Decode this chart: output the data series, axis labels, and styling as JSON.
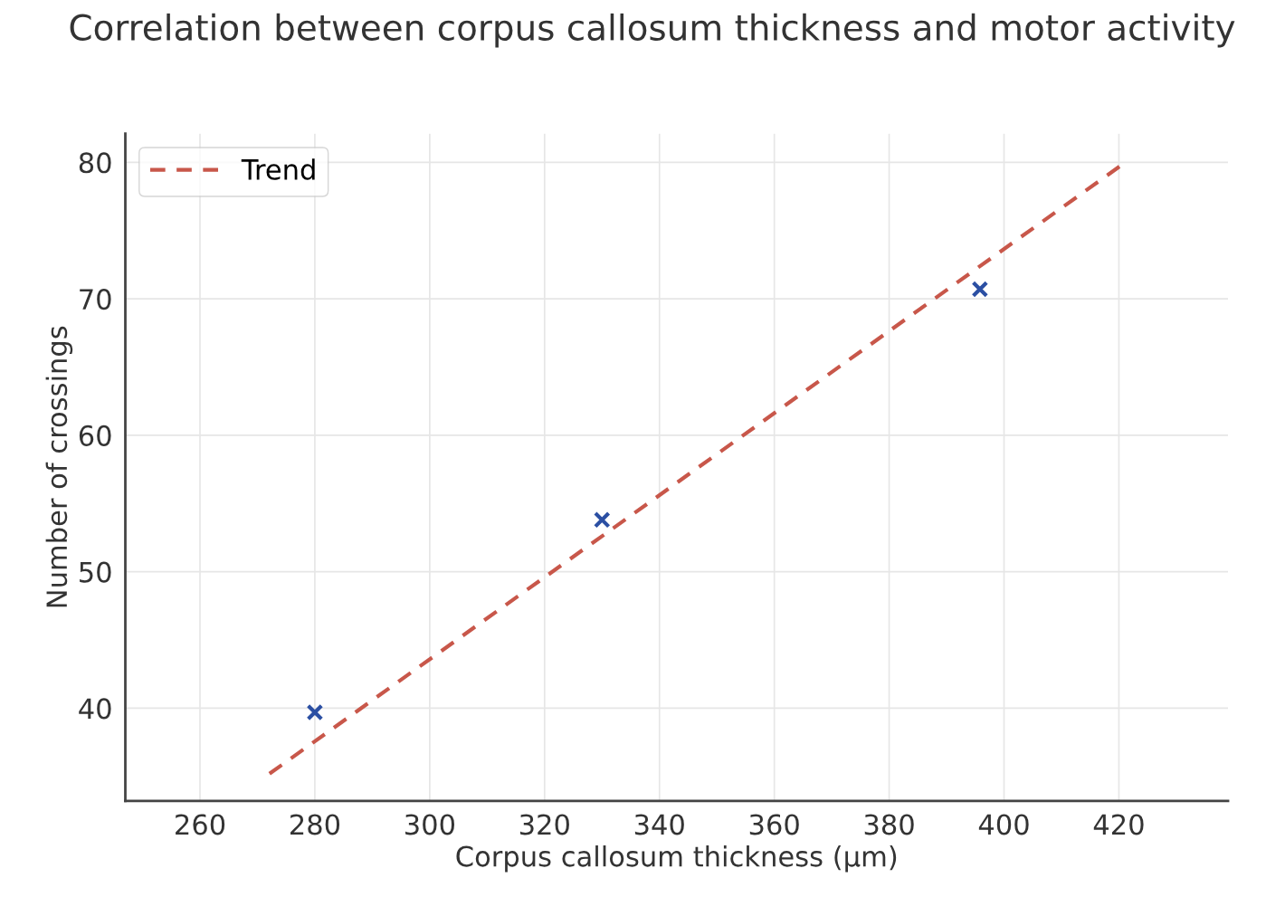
{
  "chart_data": {
    "type": "scatter",
    "title": "Correlation between corpus callosum thickness and motor activity",
    "xlabel": "Corpus callosum thickness (μm)",
    "ylabel": "Number of crossings",
    "xlim": [
      247,
      439
    ],
    "ylim": [
      33.2,
      82.1
    ],
    "xticks": [
      260,
      280,
      300,
      320,
      340,
      360,
      380,
      400,
      420
    ],
    "yticks": [
      40,
      50,
      60,
      70,
      80
    ],
    "grid": true,
    "legend": "top left",
    "marker": "cross",
    "series": [
      {
        "color": "#2b4fa3",
        "x": [
          280,
          330,
          395.8
        ],
        "values": [
          39.7,
          53.8,
          70.7
        ]
      },
      {
        "type": "line",
        "name": "Trend",
        "color": "#c8574a",
        "line_style": "dashed",
        "marker": "none",
        "x": [
          272.1,
          420.8
        ],
        "values": [
          35.2,
          79.9
        ]
      }
    ]
  }
}
